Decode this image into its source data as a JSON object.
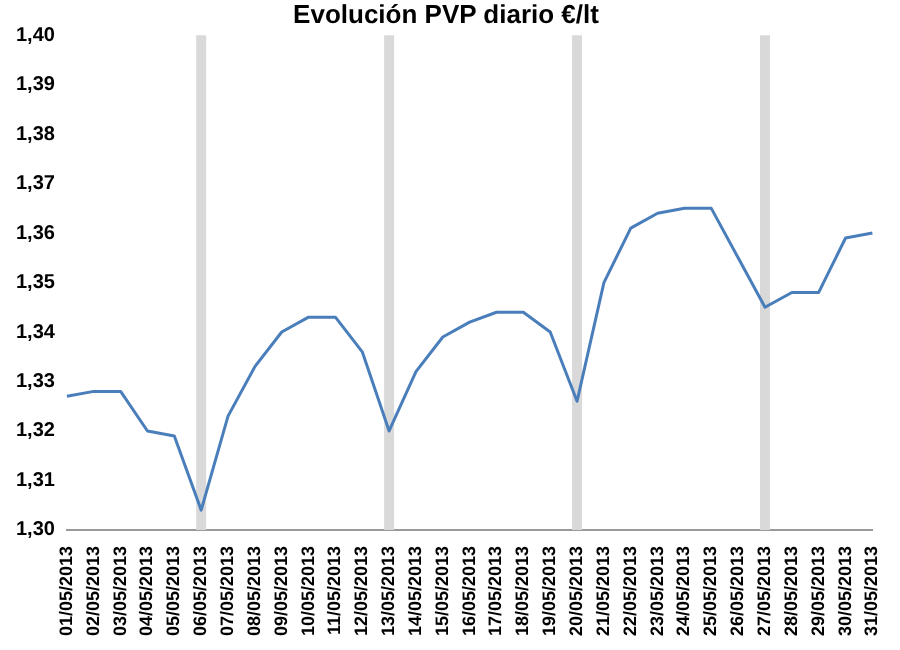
{
  "chart_data": {
    "type": "line",
    "title": "Evolución PVP diario €/lt",
    "categories": [
      "01/05/2013",
      "02/05/2013",
      "03/05/2013",
      "04/05/2013",
      "05/05/2013",
      "06/05/2013",
      "07/05/2013",
      "08/05/2013",
      "09/05/2013",
      "10/05/2013",
      "11/05/2013",
      "12/05/2013",
      "13/05/2013",
      "14/05/2013",
      "15/05/2013",
      "16/05/2013",
      "17/05/2013",
      "18/05/2013",
      "19/05/2013",
      "20/05/2013",
      "21/05/2013",
      "22/05/2013",
      "23/05/2013",
      "24/05/2013",
      "25/05/2013",
      "26/05/2013",
      "27/05/2013",
      "28/05/2013",
      "29/05/2013",
      "30/05/2013",
      "31/05/2013"
    ],
    "series": [
      {
        "color": "#4a7ebb",
        "values": [
          1.327,
          1.328,
          1.328,
          1.32,
          1.319,
          1.304,
          1.323,
          1.333,
          1.34,
          1.343,
          1.343,
          1.336,
          1.32,
          1.332,
          1.339,
          1.342,
          1.344,
          1.344,
          1.34,
          1.326,
          1.35,
          1.361,
          1.364,
          1.365,
          1.365,
          1.355,
          1.345,
          1.348,
          1.348,
          1.359,
          1.36
        ]
      }
    ],
    "ylim": [
      1.3,
      1.4
    ],
    "yticks": [
      {
        "value": 1.3,
        "label": "1,30"
      },
      {
        "value": 1.31,
        "label": "1,31"
      },
      {
        "value": 1.32,
        "label": "1,32"
      },
      {
        "value": 1.33,
        "label": "1,33"
      },
      {
        "value": 1.34,
        "label": "1,34"
      },
      {
        "value": 1.35,
        "label": "1,35"
      },
      {
        "value": 1.36,
        "label": "1,36"
      },
      {
        "value": 1.37,
        "label": "1,37"
      },
      {
        "value": 1.38,
        "label": "1,38"
      },
      {
        "value": 1.39,
        "label": "1,39"
      },
      {
        "value": 1.4,
        "label": "1,40"
      }
    ],
    "ref_lines": [
      {
        "axis": "x",
        "value": "06/05/2013",
        "color": "#d9d9d9"
      },
      {
        "axis": "x",
        "value": "13/05/2013",
        "color": "#d9d9d9"
      },
      {
        "axis": "x",
        "value": "20/05/2013",
        "color": "#d9d9d9"
      },
      {
        "axis": "x",
        "value": "27/05/2013",
        "color": "#d9d9d9"
      }
    ],
    "grid": false,
    "legend": false,
    "marker": "none",
    "line_style": "solid"
  }
}
